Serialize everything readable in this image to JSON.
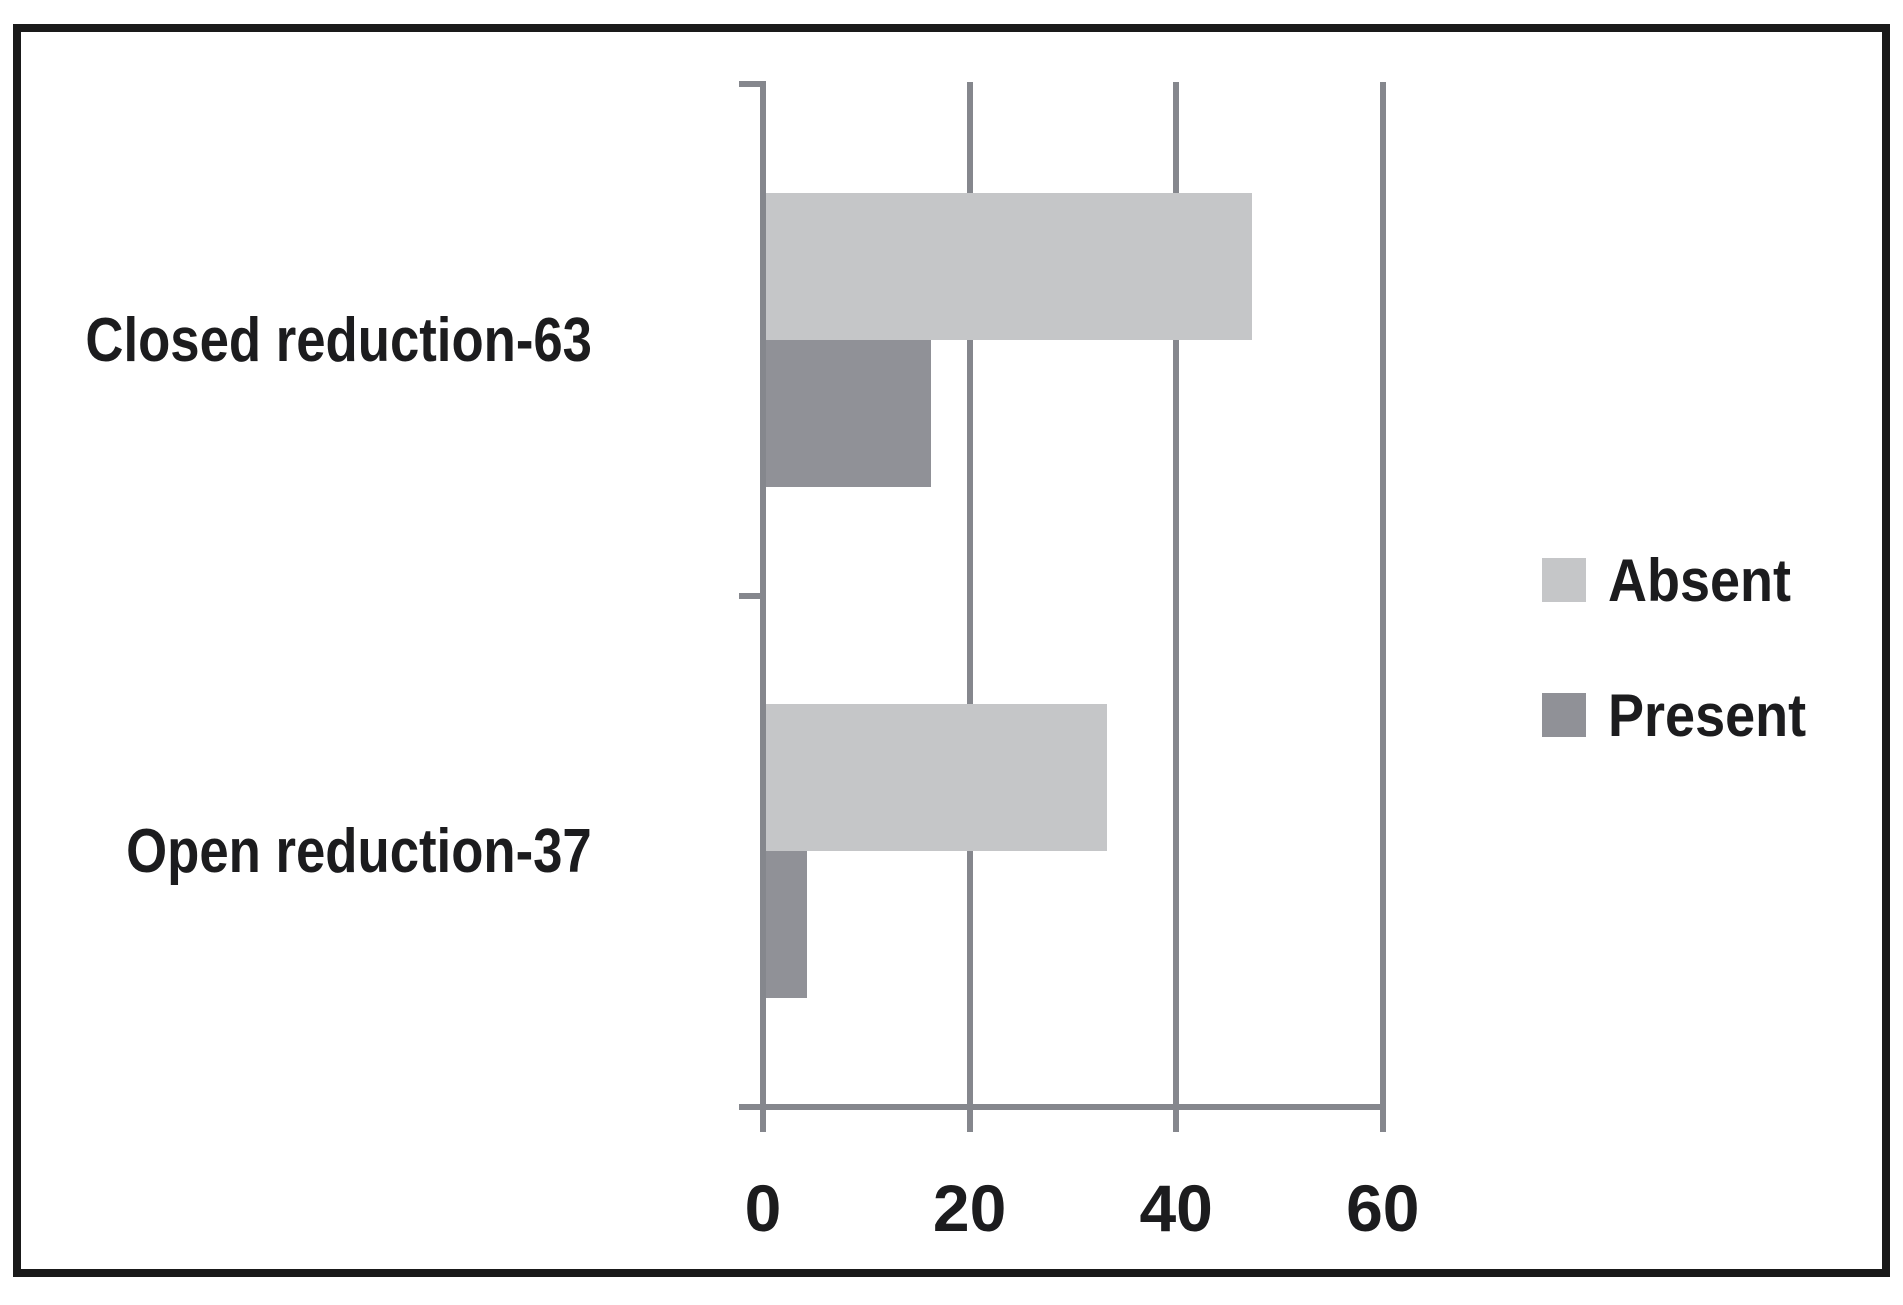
{
  "chart_data": {
    "type": "bar",
    "orientation": "horizontal",
    "title": "",
    "categories": [
      "Closed reduction-63",
      "Open reduction-37"
    ],
    "series": [
      {
        "name": "Absent",
        "color": "#c5c6c8",
        "values": [
          47,
          33
        ]
      },
      {
        "name": "Present",
        "color": "#909197",
        "values": [
          16,
          4
        ]
      }
    ],
    "xticks": [
      "0",
      "20",
      "40",
      "60"
    ],
    "xtick_values": [
      0,
      20,
      40,
      60
    ],
    "xlim": [
      0,
      60
    ],
    "grid": "vertical-gridlines-on",
    "legend_position": "right",
    "axis_color": "#85878d",
    "text_color": "#1c1c1e",
    "border_color": "#1a1a1a"
  }
}
